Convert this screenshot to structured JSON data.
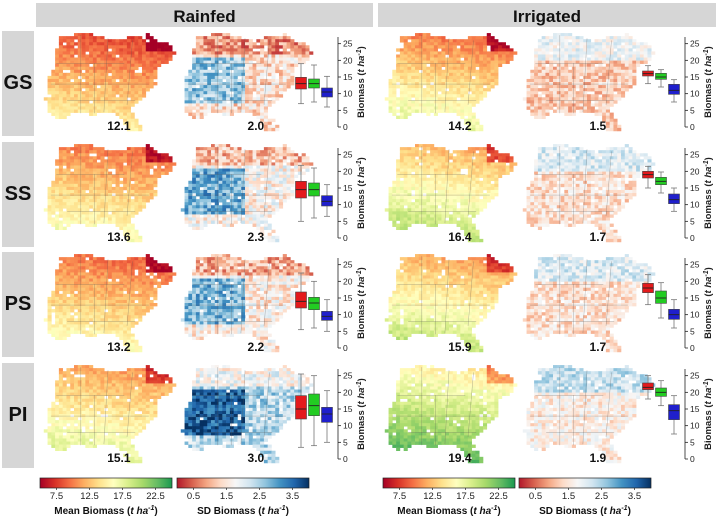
{
  "figure": {
    "column_headers": [
      "Rainfed",
      "Irrigated"
    ],
    "row_labels": [
      "GS",
      "SS",
      "PS",
      "PI"
    ]
  },
  "colorbars": [
    {
      "label_prefix": "Mean Biomass (",
      "label_italic": "t ha",
      "label_sup": "-1",
      "label_suffix": ")",
      "ticks": [
        "7.5",
        "12.5",
        "17.5",
        "22.5"
      ],
      "tick_values": [
        7.5,
        12.5,
        17.5,
        22.5
      ],
      "range": [
        5,
        25
      ],
      "palette": [
        "#a50026",
        "#d73027",
        "#f46d43",
        "#fdae61",
        "#fee08b",
        "#ffffbf",
        "#d9ef8b",
        "#a6d96a",
        "#66bd63",
        "#1a9850"
      ]
    },
    {
      "label_prefix": "SD Biomass (",
      "label_italic": "t ha",
      "label_sup": "-1",
      "label_suffix": ")",
      "ticks": [
        "0.5",
        "1.5",
        "2.5",
        "3.5"
      ],
      "tick_values": [
        0.5,
        1.5,
        2.5,
        3.5
      ],
      "range": [
        0,
        4
      ],
      "palette": [
        "#b2182b",
        "#d6604d",
        "#f4a582",
        "#fddbc7",
        "#f7f7f7",
        "#d1e5f0",
        "#92c5de",
        "#4393c3",
        "#2166ac",
        "#053061"
      ]
    }
  ],
  "chart_data": {
    "type": "box",
    "axis": {
      "label_prefix": "Biomass (",
      "label_italic": "t ha",
      "label_sup": "-1",
      "label_suffix": ")",
      "ticks": [
        "0",
        "5",
        "10",
        "15",
        "20",
        "25"
      ],
      "tick_values": [
        0,
        5,
        10,
        15,
        20,
        25
      ],
      "range": [
        0,
        27
      ]
    },
    "series_colors": [
      "#e31a1c",
      "#22cc22",
      "#1f1fcc"
    ],
    "panels": [
      {
        "row": "GS",
        "column": "Rainfed",
        "mean_map_value": "12.1",
        "sd_map_value": "2.0",
        "mean": 12.1,
        "sd": 2.0,
        "boxes": [
          {
            "q1": 11.4,
            "median": 13.0,
            "q3": 14.9,
            "min": 7.0,
            "max": 19.0
          },
          {
            "q1": 11.7,
            "median": 13.0,
            "q3": 14.4,
            "min": 7.5,
            "max": 18.6
          },
          {
            "q1": 9.0,
            "median": 10.5,
            "q3": 11.7,
            "min": 6.0,
            "max": 15.2
          }
        ]
      },
      {
        "row": "GS",
        "column": "Irrigated",
        "mean_map_value": "14.2",
        "sd_map_value": "1.5",
        "mean": 14.2,
        "sd": 1.5,
        "boxes": [
          {
            "q1": 15.3,
            "median": 16.0,
            "q3": 16.8,
            "min": 13.0,
            "max": 18.4
          },
          {
            "q1": 14.3,
            "median": 15.0,
            "q3": 16.1,
            "min": 12.0,
            "max": 17.2
          },
          {
            "q1": 9.8,
            "median": 11.0,
            "q3": 12.8,
            "min": 7.5,
            "max": 14.2
          }
        ]
      },
      {
        "row": "SS",
        "column": "Rainfed",
        "mean_map_value": "13.6",
        "sd_map_value": "2.3",
        "mean": 13.6,
        "sd": 2.3,
        "boxes": [
          {
            "q1": 12.0,
            "median": 14.5,
            "q3": 17.0,
            "min": 5.0,
            "max": 21.8
          },
          {
            "q1": 12.6,
            "median": 14.5,
            "q3": 16.5,
            "min": 6.0,
            "max": 21.0
          },
          {
            "q1": 9.6,
            "median": 11.0,
            "q3": 12.7,
            "min": 6.5,
            "max": 16.0
          }
        ]
      },
      {
        "row": "SS",
        "column": "Irrigated",
        "mean_map_value": "16.4",
        "sd_map_value": "1.7",
        "mean": 16.4,
        "sd": 1.7,
        "boxes": [
          {
            "q1": 18.0,
            "median": 19.0,
            "q3": 20.0,
            "min": 15.0,
            "max": 21.5
          },
          {
            "q1": 16.0,
            "median": 17.0,
            "q3": 18.2,
            "min": 13.5,
            "max": 19.8
          },
          {
            "q1": 10.3,
            "median": 11.5,
            "q3": 13.2,
            "min": 8.0,
            "max": 15.0
          }
        ]
      },
      {
        "row": "PS",
        "column": "Rainfed",
        "mean_map_value": "13.2",
        "sd_map_value": "2.2",
        "mean": 13.2,
        "sd": 2.2,
        "boxes": [
          {
            "q1": 12.0,
            "median": 14.0,
            "q3": 16.8,
            "min": 5.5,
            "max": 22.5
          },
          {
            "q1": 11.5,
            "median": 13.5,
            "q3": 15.2,
            "min": 6.0,
            "max": 20.0
          },
          {
            "q1": 8.3,
            "median": 9.5,
            "q3": 11.0,
            "min": 5.0,
            "max": 14.5
          }
        ]
      },
      {
        "row": "PS",
        "column": "Irrigated",
        "mean_map_value": "15.9",
        "sd_map_value": "1.7",
        "mean": 15.9,
        "sd": 1.7,
        "boxes": [
          {
            "q1": 16.6,
            "median": 18.0,
            "q3": 19.4,
            "min": 13.0,
            "max": 22.0
          },
          {
            "q1": 13.4,
            "median": 15.0,
            "q3": 17.1,
            "min": 9.0,
            "max": 19.6
          },
          {
            "q1": 8.6,
            "median": 10.0,
            "q3": 11.6,
            "min": 6.0,
            "max": 14.5
          }
        ]
      },
      {
        "row": "PI",
        "column": "Rainfed",
        "mean_map_value": "15.1",
        "sd_map_value": "3.0",
        "mean": 15.1,
        "sd": 3.0,
        "boxes": [
          {
            "q1": 12.0,
            "median": 15.0,
            "q3": 19.0,
            "min": 3.5,
            "max": 25.5
          },
          {
            "q1": 13.0,
            "median": 16.0,
            "q3": 19.5,
            "min": 4.0,
            "max": 25.0
          },
          {
            "q1": 11.0,
            "median": 13.5,
            "q3": 15.5,
            "min": 5.0,
            "max": 20.5
          }
        ]
      },
      {
        "row": "PI",
        "column": "Irrigated",
        "mean_map_value": "19.4",
        "sd_map_value": "1.9",
        "mean": 19.4,
        "sd": 1.9,
        "boxes": [
          {
            "q1": 20.8,
            "median": 21.5,
            "q3": 22.8,
            "min": 18.0,
            "max": 25.0
          },
          {
            "q1": 18.8,
            "median": 20.0,
            "q3": 21.3,
            "min": 16.0,
            "max": 23.5
          },
          {
            "q1": 11.8,
            "median": 14.5,
            "q3": 16.3,
            "min": 7.5,
            "max": 19.0
          }
        ]
      }
    ]
  }
}
